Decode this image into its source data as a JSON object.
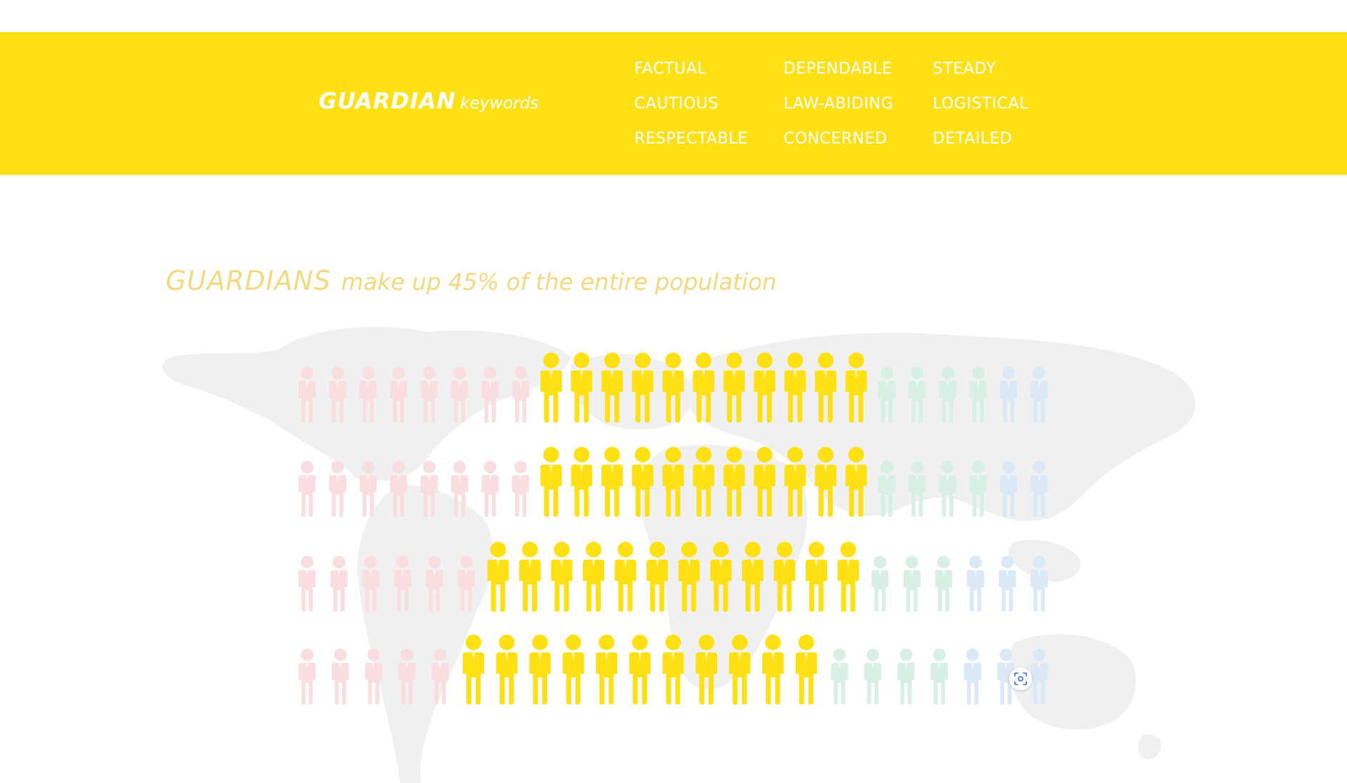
{
  "keywords_band": {
    "title": "GUARDIAN",
    "subtitle": "keywords",
    "columns": [
      [
        "FACTUAL",
        "CAUTIOUS",
        "RESPECTABLE"
      ],
      [
        "DEPENDABLE",
        "LAW-ABIDING",
        "CONCERNED"
      ],
      [
        "STEADY",
        "LOGISTICAL",
        "DETAILED"
      ]
    ]
  },
  "headline": {
    "type_name": "GUARDIANS",
    "text": "make up 45% of the entire population"
  },
  "pictogram": {
    "highlight_share_percent": 45,
    "rows": [
      {
        "pink": 8,
        "yellow": 11,
        "green": 4,
        "blue": 2
      },
      {
        "pink": 8,
        "yellow": 11,
        "green": 4,
        "blue": 2
      },
      {
        "pink": 6,
        "yellow": 12,
        "green": 3,
        "blue": 3
      },
      {
        "pink": 5,
        "yellow": 11,
        "green": 4,
        "blue": 3
      }
    ],
    "colors": {
      "pink": "#f9dde1",
      "yellow": "#ffe014",
      "green": "#d8efe5",
      "blue": "#dbe8f6",
      "map": "#f0f0f0"
    }
  },
  "icons": {
    "person": "person-icon",
    "map": "world-map",
    "screenshot": "screenshot-icon"
  }
}
